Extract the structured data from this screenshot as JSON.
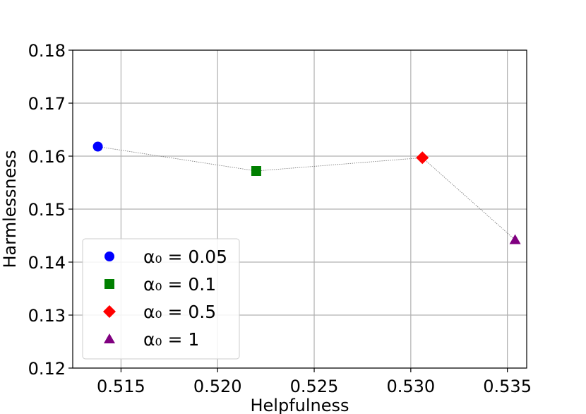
{
  "chart_data": {
    "type": "scatter",
    "xlabel": "Helpfulness",
    "ylabel": "Harmlessness",
    "xlim": [
      0.5125,
      0.536
    ],
    "ylim": [
      0.12,
      0.18
    ],
    "xticks": [
      "0.515",
      "0.520",
      "0.525",
      "0.530",
      "0.535"
    ],
    "yticks": [
      "0.12",
      "0.13",
      "0.14",
      "0.15",
      "0.16",
      "0.17",
      "0.18"
    ],
    "grid": true,
    "legend_position": "lower-left",
    "connecting_line": {
      "style": "dotted",
      "color": "#808080"
    },
    "series": [
      {
        "name": "α₀ = 0.05",
        "marker": "circle",
        "color": "#0000ff",
        "x": 0.5138,
        "y": 0.1618
      },
      {
        "name": "α₀ = 0.1",
        "marker": "square",
        "color": "#008000",
        "x": 0.522,
        "y": 0.1572
      },
      {
        "name": "α₀ = 0.5",
        "marker": "diamond",
        "color": "#ff0000",
        "x": 0.5306,
        "y": 0.1597
      },
      {
        "name": "α₀ = 1",
        "marker": "triangle",
        "color": "#800080",
        "x": 0.5354,
        "y": 0.1442
      }
    ]
  }
}
